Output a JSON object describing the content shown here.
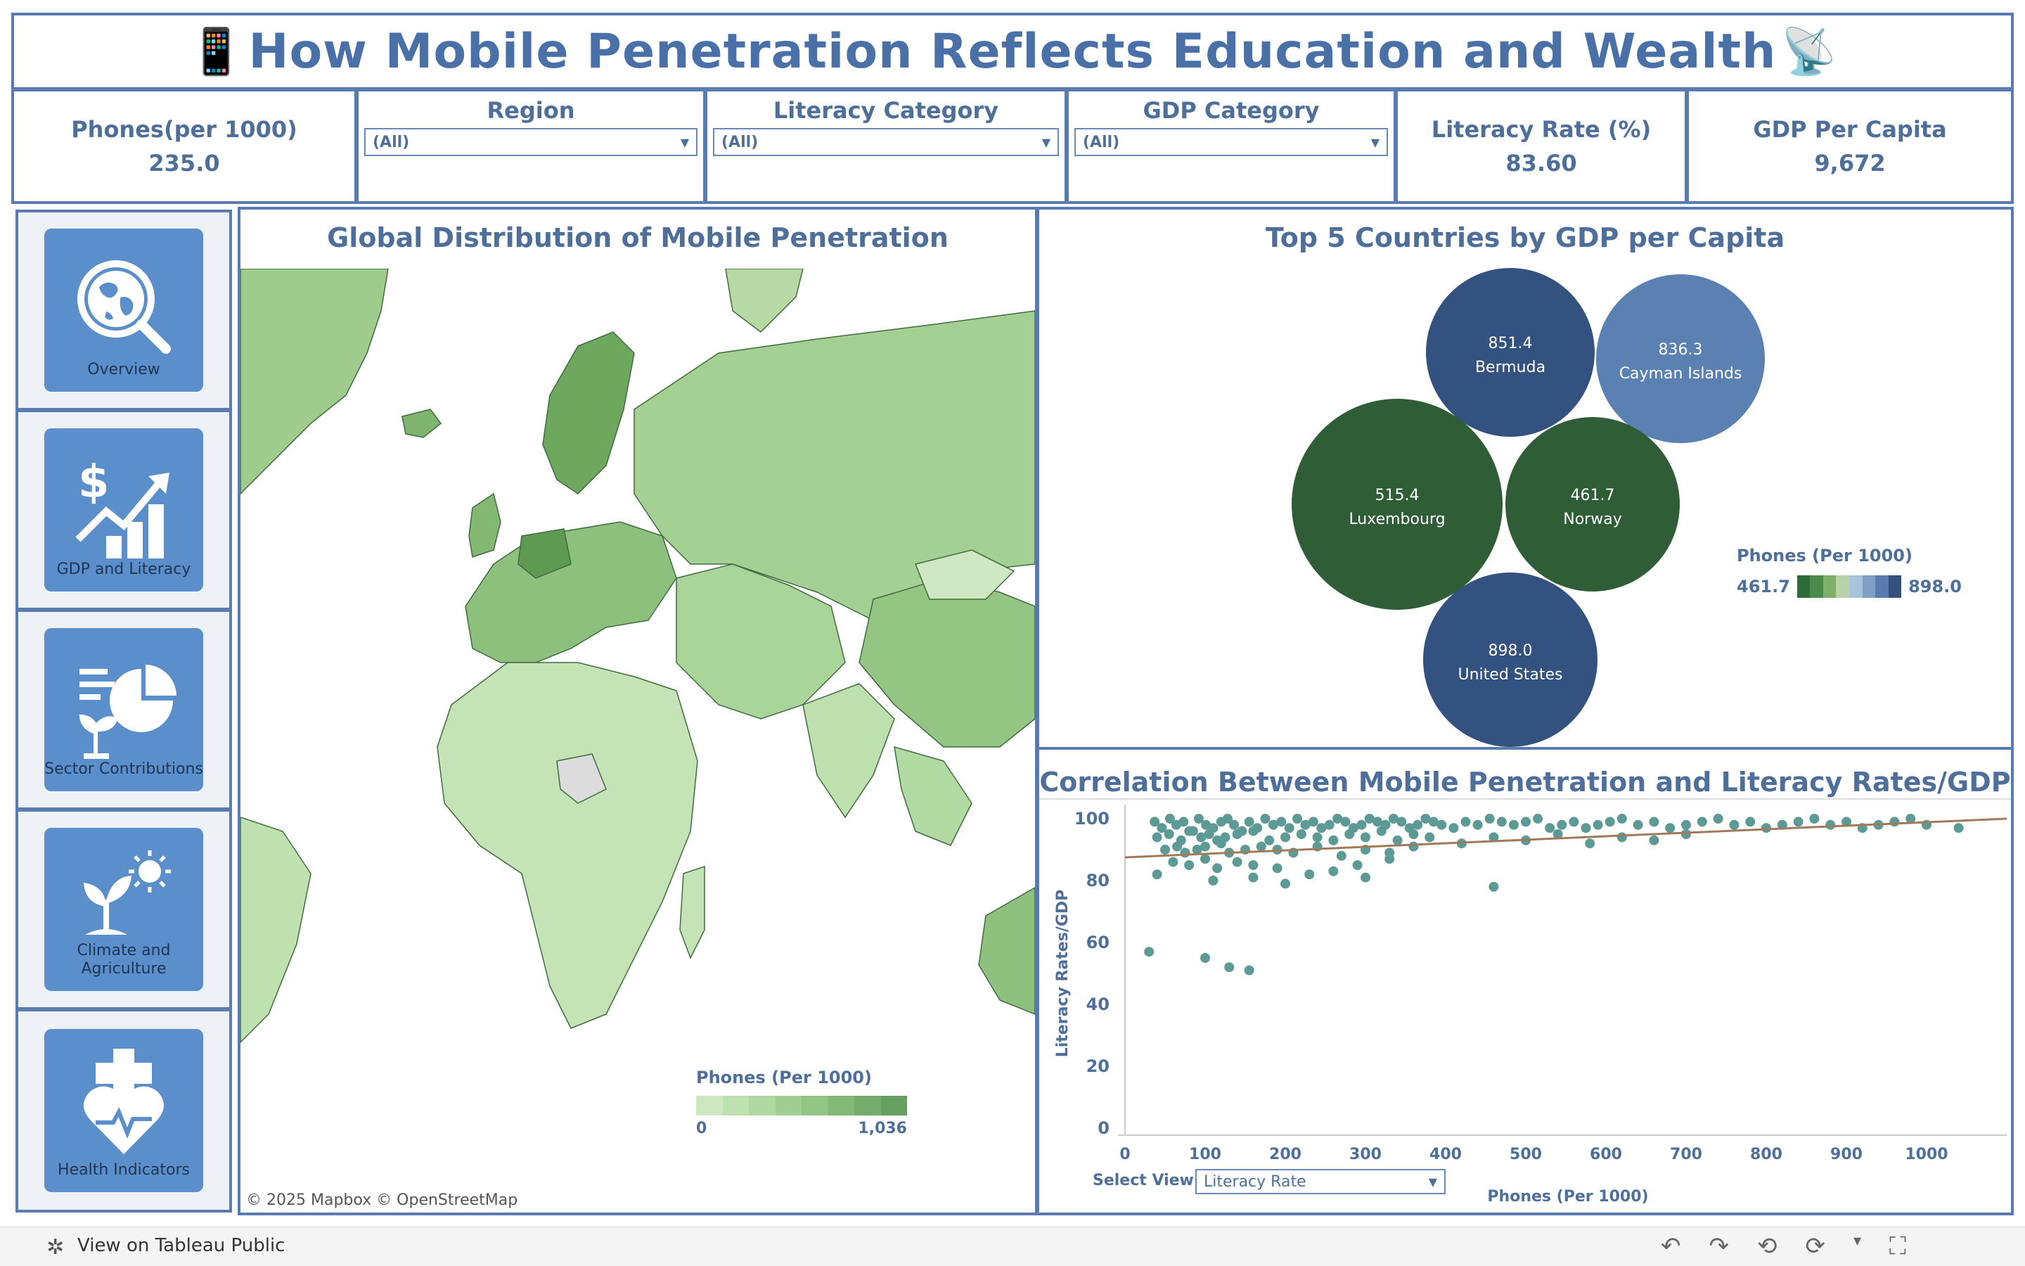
{
  "header": {
    "icon_left": "📱",
    "title": "How Mobile Penetration Reflects Education and Wealth",
    "icon_right": "📡"
  },
  "kpis": {
    "phones": {
      "label": "Phones(per 1000)",
      "value": "235.0"
    },
    "literacy": {
      "label": "Literacy Rate (%)",
      "value": "83.60"
    },
    "gdp": {
      "label": "GDP Per Capita",
      "value": "9,672"
    }
  },
  "filters": {
    "region": {
      "label": "Region",
      "value": "(All)"
    },
    "literacy_category": {
      "label": "Literacy Category",
      "value": "(All)"
    },
    "gdp_category": {
      "label": "GDP Category",
      "value": "(All)"
    }
  },
  "nav": {
    "items": [
      {
        "label": "Overview",
        "icon": "globe-search-icon"
      },
      {
        "label": "GDP and Literacy",
        "icon": "dollar-chart-icon"
      },
      {
        "label": "Sector Contributions",
        "icon": "pie-plant-icon"
      },
      {
        "label": "Climate and Agriculture",
        "icon": "plant-sun-icon"
      },
      {
        "label": "Health Indicators",
        "icon": "health-heart-icon"
      }
    ]
  },
  "map": {
    "title": "Global Distribution of Mobile Penetration",
    "legend_title": "Phones (Per 1000)",
    "legend_min": "0",
    "legend_max": "1,036",
    "attribution": "© 2025 Mapbox  © OpenStreetMap",
    "colors": [
      "#cde8c0",
      "#bfe0b0",
      "#b0d8a0",
      "#a1ce92",
      "#92c484",
      "#83b977",
      "#74ad6b",
      "#66a060"
    ]
  },
  "bubbles": {
    "title": "Top 5 Countries by GDP per Capita",
    "legend_title": "Phones (Per 1000)",
    "legend_min": "461.7",
    "legend_max": "898.0",
    "legend_colors": [
      "#2f6a3a",
      "#4a8a4a",
      "#7fb06a",
      "#b7d2a6",
      "#a8c4dc",
      "#7f9fc6",
      "#5a7bb0",
      "#34517d"
    ]
  },
  "scatter": {
    "title": "Correlation Between Mobile Penetration and Literacy Rates/GDP",
    "select_view_label": "Select  View",
    "select_view_value": "Literacy Rate"
  },
  "chart_data": [
    {
      "type": "bubble",
      "title": "Top 5 Countries by GDP per Capita",
      "series": [
        {
          "name": "Bermuda",
          "value": 851.4,
          "color": "#34527f"
        },
        {
          "name": "Cayman Islands",
          "value": 836.3,
          "color": "#5b80b2"
        },
        {
          "name": "Luxembourg",
          "value": 515.4,
          "color": "#2f5d36"
        },
        {
          "name": "Norway",
          "value": 461.7,
          "color": "#2f5d36"
        },
        {
          "name": "United States",
          "value": 898.0,
          "color": "#34527f"
        }
      ]
    },
    {
      "type": "scatter",
      "title": "Correlation Between Mobile Penetration and Literacy Rates/GDP",
      "xlabel": "Phones (Per 1000)",
      "ylabel": "Literacy Rates/GDP",
      "xlim": [
        0,
        1100
      ],
      "ylim": [
        0,
        100
      ],
      "xticks": [
        0,
        100,
        200,
        300,
        400,
        500,
        600,
        700,
        800,
        900,
        1000
      ],
      "yticks": [
        0,
        20,
        40,
        60,
        80,
        100
      ],
      "trend": {
        "x": [
          0,
          1100
        ],
        "y": [
          87.5,
          100
        ]
      },
      "point_color": "#5d9a95",
      "trend_color": "#a07a5a",
      "x": [
        37,
        46,
        56,
        64,
        73,
        80,
        92,
        101,
        110,
        120,
        128,
        136,
        146,
        155,
        165,
        175,
        185,
        195,
        205,
        215,
        225,
        235,
        245,
        255,
        265,
        275,
        285,
        295,
        305,
        315,
        325,
        335,
        345,
        355,
        365,
        375,
        385,
        395,
        410,
        425,
        440,
        455,
        470,
        485,
        500,
        515,
        530,
        545,
        560,
        575,
        590,
        605,
        620,
        640,
        660,
        680,
        700,
        720,
        740,
        760,
        780,
        800,
        820,
        840,
        860,
        880,
        900,
        920,
        940,
        960,
        980,
        1000,
        1040,
        40,
        55,
        70,
        85,
        95,
        105,
        115,
        125,
        140,
        160,
        180,
        200,
        220,
        240,
        260,
        280,
        300,
        320,
        340,
        360,
        380,
        420,
        460,
        500,
        540,
        580,
        620,
        660,
        700,
        50,
        65,
        75,
        90,
        100,
        120,
        130,
        150,
        170,
        190,
        210,
        240,
        270,
        300,
        330,
        360,
        60,
        80,
        100,
        115,
        140,
        160,
        190,
        230,
        290,
        330,
        40,
        110,
        160,
        200,
        260,
        300,
        460,
        30,
        100,
        130,
        155
      ],
      "y": [
        99,
        97,
        100,
        98,
        99,
        96,
        100,
        98,
        97,
        99,
        100,
        98,
        96,
        99,
        97,
        100,
        98,
        99,
        97,
        100,
        98,
        99,
        97,
        98,
        100,
        99,
        97,
        98,
        100,
        99,
        98,
        100,
        99,
        97,
        98,
        100,
        99,
        98,
        97,
        99,
        98,
        100,
        99,
        98,
        99,
        100,
        97,
        98,
        99,
        97,
        98,
        99,
        100,
        98,
        99,
        97,
        98,
        99,
        100,
        98,
        99,
        97,
        98,
        99,
        100,
        98,
        99,
        97,
        98,
        99,
        100,
        98,
        97,
        94,
        95,
        93,
        96,
        94,
        95,
        93,
        94,
        95,
        96,
        93,
        94,
        95,
        94,
        93,
        95,
        94,
        96,
        93,
        95,
        94,
        92,
        94,
        93,
        95,
        92,
        94,
        93,
        95,
        90,
        91,
        89,
        90,
        91,
        92,
        89,
        90,
        91,
        90,
        89,
        91,
        88,
        90,
        89,
        91,
        86,
        85,
        87,
        84,
        86,
        85,
        84,
        82,
        85,
        87,
        82,
        80,
        81,
        79,
        83,
        81,
        78,
        57,
        55,
        52,
        51
      ],
      "select_view": "Literacy Rate"
    }
  ]
}
